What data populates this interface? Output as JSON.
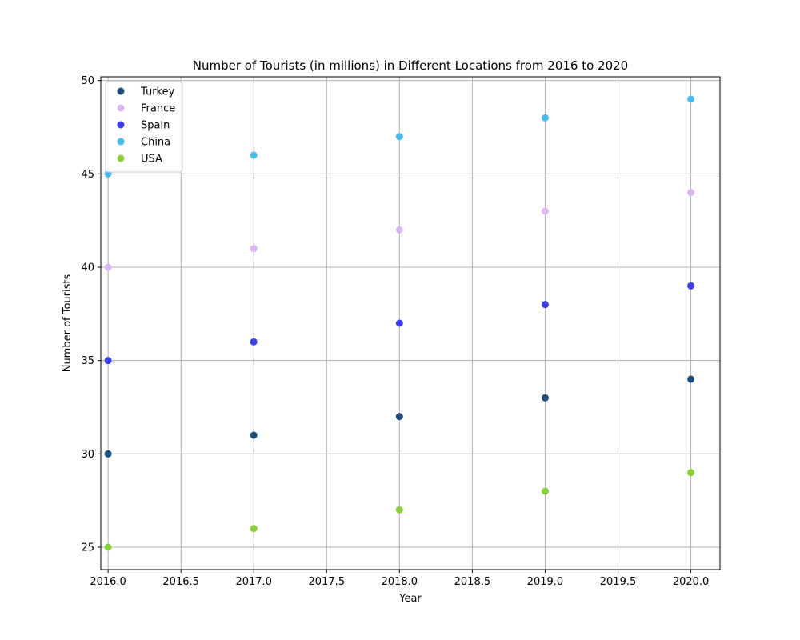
{
  "chart_data": {
    "type": "scatter",
    "title": "Number of Tourists (in millions) in Different Locations from 2016 to 2020",
    "xlabel": "Year",
    "ylabel": "Number of Tourists",
    "x": [
      2016,
      2017,
      2018,
      2019,
      2020
    ],
    "xlim": [
      2015.95,
      2020.2
    ],
    "ylim": [
      23.8,
      50.2
    ],
    "xticks": [
      2016.0,
      2016.5,
      2017.0,
      2017.5,
      2018.0,
      2018.5,
      2019.0,
      2019.5,
      2020.0
    ],
    "xtick_labels": [
      "2016.0",
      "2016.5",
      "2017.0",
      "2017.5",
      "2018.0",
      "2018.5",
      "2019.0",
      "2019.5",
      "2020.0"
    ],
    "yticks": [
      25,
      30,
      35,
      40,
      45,
      50
    ],
    "ytick_labels": [
      "25",
      "30",
      "35",
      "40",
      "45",
      "50"
    ],
    "grid": true,
    "legend_position": "upper-left",
    "series": [
      {
        "name": "Turkey",
        "color": "#1f4e79",
        "values": [
          30,
          31,
          32,
          33,
          34
        ]
      },
      {
        "name": "France",
        "color": "#dab8f2",
        "values": [
          40,
          41,
          42,
          43,
          44
        ]
      },
      {
        "name": "Spain",
        "color": "#3d3deb",
        "values": [
          35,
          36,
          37,
          38,
          39
        ]
      },
      {
        "name": "China",
        "color": "#4cbbe9",
        "values": [
          45,
          46,
          47,
          48,
          49
        ]
      },
      {
        "name": "USA",
        "color": "#8ccf3a",
        "values": [
          25,
          26,
          27,
          28,
          29
        ]
      }
    ]
  }
}
